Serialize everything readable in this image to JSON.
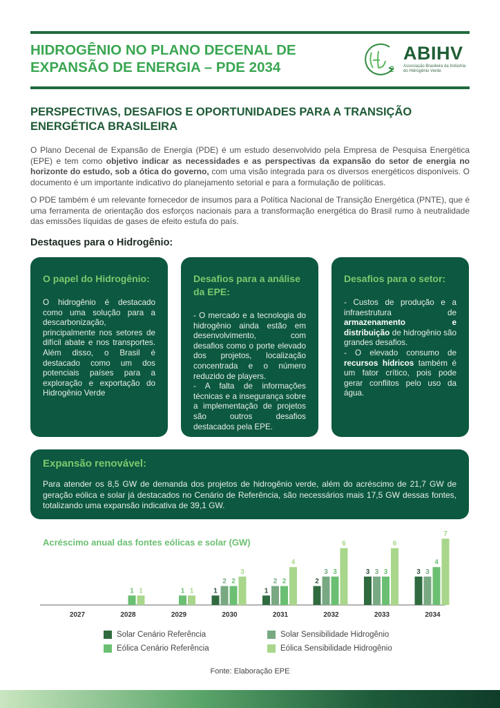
{
  "header": {
    "title_line1": "HIDROGÊNIO NO PLANO DECENAL DE",
    "title_line2": "EXPANSÃO DE ENERGIA – PDE 2034",
    "logo_name": "ABIHV",
    "logo_sub_line1": "Associação Brasileira da Indústria",
    "logo_sub_line2": "do Hidrogênio Verde",
    "logo_text": "H2"
  },
  "subtitle": "PERSPECTIVAS, DESAFIOS E OPORTUNIDADES PARA A TRANSIÇÃO ENERGÉTICA BRASILEIRA",
  "paragraphs": [
    [
      {
        "t": "O Plano Decenal de Expansão de Energia (PDE) é um estudo desenvolvido pela Empresa de Pesquisa Energética (EPE) e tem como "
      },
      {
        "t": "objetivo indicar as necessidades e as perspectivas da expansão do setor de energia no horizonte do estudo, sob a ótica do governo,",
        "b": true
      },
      {
        "t": " com uma visão integrada para os diversos energéticos disponíveis. O documento é um importante indicativo do planejamento setorial e para a formulação de políticas."
      }
    ],
    [
      {
        "t": "O PDE também é um relevante fornecedor de insumos para a Política Nacional de Transição Energética (PNTE), que é uma ferramenta de orientação dos esforços nacionais para a transformação energética do Brasil rumo à neutralidade das emissões líquidas de gases de efeito estufa do país."
      }
    ]
  ],
  "highlights_title": "Destaques para o Hidrogênio:",
  "cards": [
    {
      "title": "O papel do Hidrogênio:",
      "body": [
        {
          "t": "O hidrogênio é destacado como uma solução para a descarbonização, principalmente nos setores de difícil abate e nos transportes. Além disso, o Brasil é destacado como um dos potenciais países para a exploração e exportação do Hidrogênio Verde"
        }
      ]
    },
    {
      "title": "Desafios para a análise da EPE:",
      "body": [
        {
          "t": "- O mercado e a tecnologia do hidrogênio ainda estão em desenvolvimento, com desafios como o porte elevado dos projetos, localização concentrada e o número reduzido de players.\n- A falta de informações técnicas e a insegurança sobre a implementação de projetos são outros desafios destacados pela EPE."
        }
      ]
    },
    {
      "title": "Desafios para o setor:",
      "body": [
        {
          "t": "- Custos de produção e a infraestrutura de "
        },
        {
          "t": "armazenamento e distribuição",
          "b": true
        },
        {
          "t": " de hidrogênio são grandes desafios.\n- O elevado consumo de "
        },
        {
          "t": "recursos hídricos",
          "b": true
        },
        {
          "t": " também é um fator crítico, pois pode gerar conflitos pelo uso da água."
        }
      ]
    }
  ],
  "expansion": {
    "title": "Expansão renovável:",
    "body": [
      {
        "t": "Para atender os 8,5 GW de demanda dos projetos de hidrogênio verde, além do acréscimo de 21,7 GW de geração eólica e solar já destacados no Cenário de Referência, são necessários mais 17,5 GW dessas fontes, totalizando uma expansão indicativa de 39,1 GW."
      }
    ]
  },
  "chart_data": {
    "type": "bar",
    "title": "Acréscimo anual das fontes eólicas e solar (GW)",
    "categories": [
      "2027",
      "2028",
      "2029",
      "2030",
      "2031",
      "2032",
      "2033",
      "2034"
    ],
    "series": [
      {
        "name": "Solar Cenário Referência",
        "color": "#2f6b3f",
        "values": [
          null,
          null,
          null,
          1,
          1,
          2,
          3,
          3
        ]
      },
      {
        "name": "Solar Sensibilidade Hidrogênio",
        "color": "#78a982",
        "values": [
          null,
          null,
          null,
          2,
          2,
          3,
          3,
          3
        ]
      },
      {
        "name": "Eólica Cenário Referência",
        "color": "#6bbf72",
        "values": [
          null,
          1,
          1,
          2,
          2,
          3,
          3,
          4
        ]
      },
      {
        "name": "Eólica Sensibilidade Hidrogênio",
        "color": "#a8d68a",
        "values": [
          null,
          1,
          1,
          3,
          4,
          6,
          6,
          7
        ]
      }
    ],
    "ylim": [
      0,
      7
    ],
    "grid": false,
    "legend_position": "bottom"
  },
  "source": "Fonte: Elaboração EPE"
}
